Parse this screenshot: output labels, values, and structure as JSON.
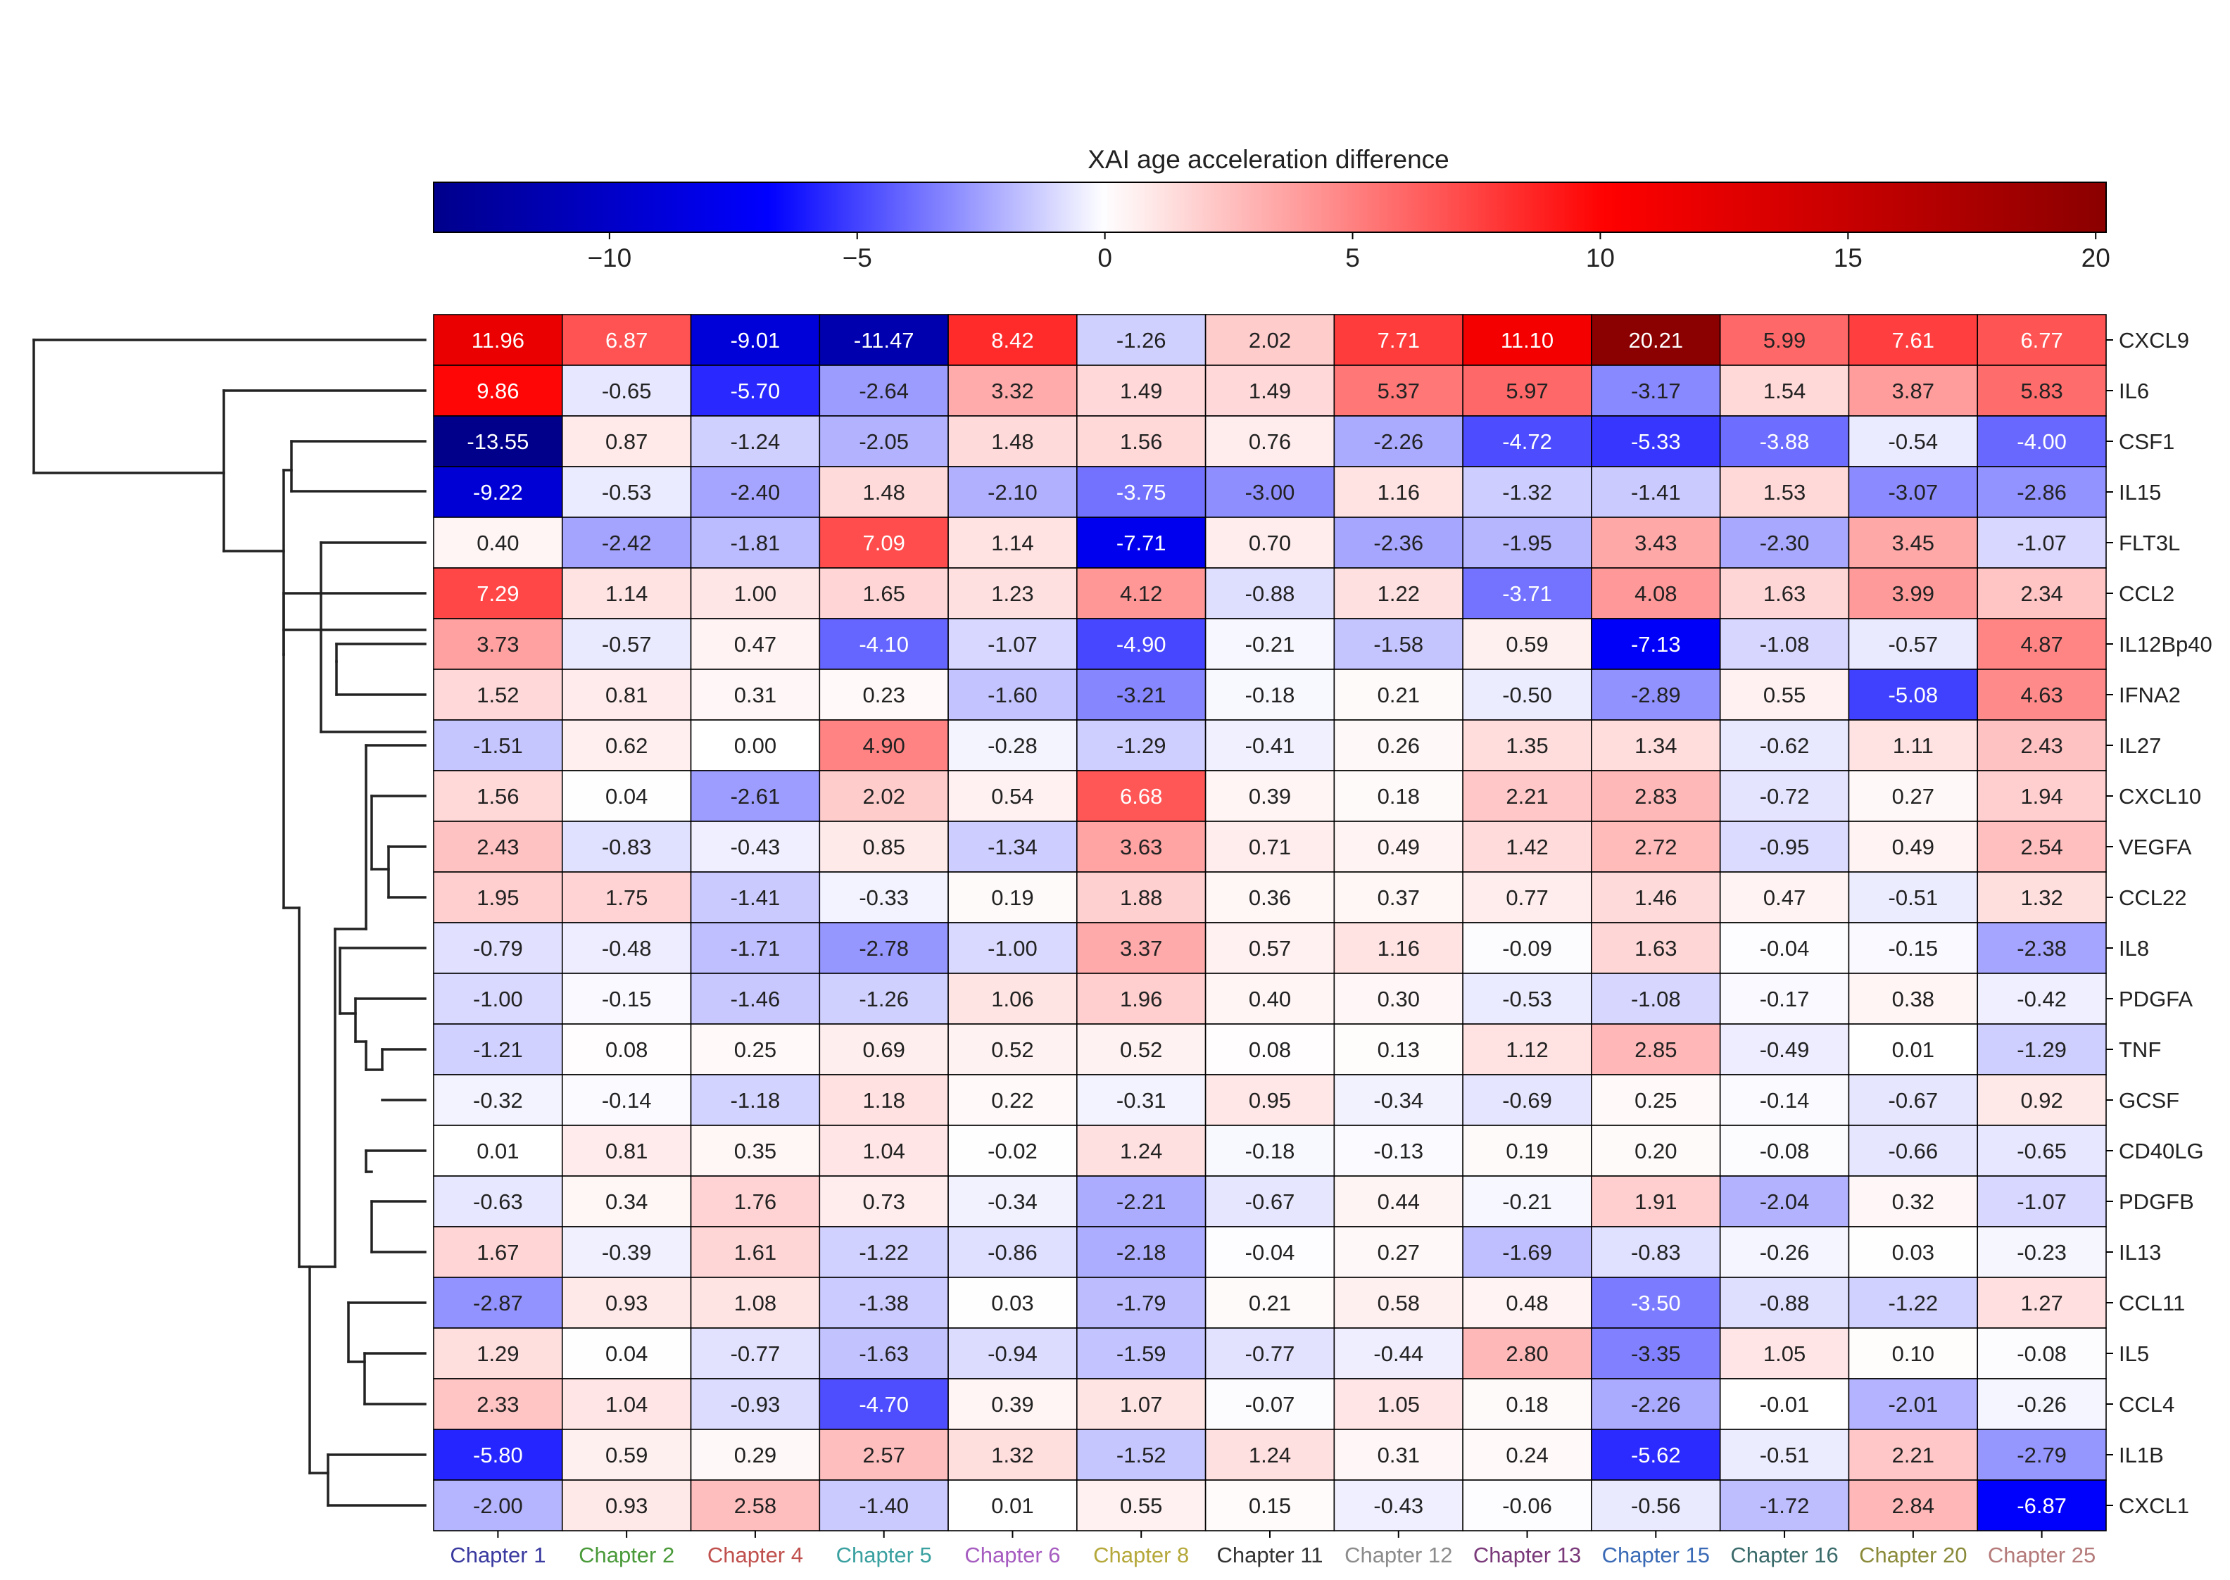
{
  "chart_data": {
    "type": "heatmap",
    "title": "",
    "colorbar": {
      "label": "XAI age acceleration difference",
      "range": [
        -13.55,
        20.21
      ],
      "center": 0,
      "ticks": [
        -10,
        -5,
        0,
        5,
        10,
        15,
        20
      ],
      "tick_labels": [
        "−10",
        "−5",
        "0",
        "5",
        "10",
        "15",
        "20"
      ],
      "colormap": [
        "#00008b",
        "#0000ff",
        "#ffffff",
        "#ff0000",
        "#8b0000"
      ],
      "placement": "top"
    },
    "columns": [
      {
        "label": "Chapter 1",
        "color": "#3a3aa0"
      },
      {
        "label": "Chapter 2",
        "color": "#4a9a3a"
      },
      {
        "label": "Chapter 4",
        "color": "#c0504d"
      },
      {
        "label": "Chapter 5",
        "color": "#3aa0a0"
      },
      {
        "label": "Chapter 6",
        "color": "#a65cc0"
      },
      {
        "label": "Chapter 8",
        "color": "#b5a83a"
      },
      {
        "label": "Chapter 11",
        "color": "#333333"
      },
      {
        "label": "Chapter 12",
        "color": "#8c8c8c"
      },
      {
        "label": "Chapter 13",
        "color": "#7a3a7a"
      },
      {
        "label": "Chapter 15",
        "color": "#3a6ab5"
      },
      {
        "label": "Chapter 16",
        "color": "#3a6a6a"
      },
      {
        "label": "Chapter 20",
        "color": "#8a8a3a"
      },
      {
        "label": "Chapter 25",
        "color": "#b57a7a"
      }
    ],
    "rows": [
      "CXCL9",
      "IL6",
      "CSF1",
      "IL15",
      "FLT3L",
      "CCL2",
      "IL12Bp40",
      "IFNA2",
      "IL27",
      "CXCL10",
      "VEGFA",
      "CCL22",
      "IL8",
      "PDGFA",
      "TNF",
      "GCSF",
      "CD40LG",
      "PDGFB",
      "IL13",
      "CCL11",
      "IL5",
      "CCL4",
      "IL1B",
      "CXCL1"
    ],
    "values": [
      [
        11.96,
        6.87,
        -9.01,
        -11.47,
        8.42,
        -1.26,
        2.02,
        7.71,
        11.1,
        20.21,
        5.99,
        7.61,
        6.77
      ],
      [
        9.86,
        -0.65,
        -5.7,
        -2.64,
        3.32,
        1.49,
        1.49,
        5.37,
        5.97,
        -3.17,
        1.54,
        3.87,
        5.83
      ],
      [
        -13.55,
        0.87,
        -1.24,
        -2.05,
        1.48,
        1.56,
        0.76,
        -2.26,
        -4.72,
        -5.33,
        -3.88,
        -0.54,
        -4.0
      ],
      [
        -9.22,
        -0.53,
        -2.4,
        1.48,
        -2.1,
        -3.75,
        -3.0,
        1.16,
        -1.32,
        -1.41,
        1.53,
        -3.07,
        -2.86
      ],
      [
        0.4,
        -2.42,
        -1.81,
        7.09,
        1.14,
        -7.71,
        0.7,
        -2.36,
        -1.95,
        3.43,
        -2.3,
        3.45,
        -1.07
      ],
      [
        7.29,
        1.14,
        1.0,
        1.65,
        1.23,
        4.12,
        -0.88,
        1.22,
        -3.71,
        4.08,
        1.63,
        3.99,
        2.34
      ],
      [
        3.73,
        -0.57,
        0.47,
        -4.1,
        -1.07,
        -4.9,
        -0.21,
        -1.58,
        0.59,
        -7.13,
        -1.08,
        -0.57,
        4.87
      ],
      [
        1.52,
        0.81,
        0.31,
        0.23,
        -1.6,
        -3.21,
        -0.18,
        0.21,
        -0.5,
        -2.89,
        0.55,
        -5.08,
        4.63
      ],
      [
        -1.51,
        0.62,
        0.0,
        4.9,
        -0.28,
        -1.29,
        -0.41,
        0.26,
        1.35,
        1.34,
        -0.62,
        1.11,
        2.43
      ],
      [
        1.56,
        0.04,
        -2.61,
        2.02,
        0.54,
        6.68,
        0.39,
        0.18,
        2.21,
        2.83,
        -0.72,
        0.27,
        1.94
      ],
      [
        2.43,
        -0.83,
        -0.43,
        0.85,
        -1.34,
        3.63,
        0.71,
        0.49,
        1.42,
        2.72,
        -0.95,
        0.49,
        2.54
      ],
      [
        1.95,
        1.75,
        -1.41,
        -0.33,
        0.19,
        1.88,
        0.36,
        0.37,
        0.77,
        1.46,
        0.47,
        -0.51,
        1.32
      ],
      [
        -0.79,
        -0.48,
        -1.71,
        -2.78,
        -1.0,
        3.37,
        0.57,
        1.16,
        -0.09,
        1.63,
        -0.04,
        -0.15,
        -2.38
      ],
      [
        -1.0,
        -0.15,
        -1.46,
        -1.26,
        1.06,
        1.96,
        0.4,
        0.3,
        -0.53,
        -1.08,
        -0.17,
        0.38,
        -0.42
      ],
      [
        -1.21,
        0.08,
        0.25,
        0.69,
        0.52,
        0.52,
        0.08,
        0.13,
        1.12,
        2.85,
        -0.49,
        0.01,
        -1.29
      ],
      [
        -0.32,
        -0.14,
        -1.18,
        1.18,
        0.22,
        -0.31,
        0.95,
        -0.34,
        -0.69,
        0.25,
        -0.14,
        -0.67,
        0.92
      ],
      [
        0.01,
        0.81,
        0.35,
        1.04,
        -0.02,
        1.24,
        -0.18,
        -0.13,
        0.19,
        0.2,
        -0.08,
        -0.66,
        -0.65
      ],
      [
        -0.63,
        0.34,
        1.76,
        0.73,
        -0.34,
        -2.21,
        -0.67,
        0.44,
        -0.21,
        1.91,
        -2.04,
        0.32,
        -1.07
      ],
      [
        1.67,
        -0.39,
        1.61,
        -1.22,
        -0.86,
        -2.18,
        -0.04,
        0.27,
        -1.69,
        -0.83,
        -0.26,
        0.03,
        -0.23
      ],
      [
        -2.87,
        0.93,
        1.08,
        -1.38,
        0.03,
        -1.79,
        0.21,
        0.58,
        0.48,
        -3.5,
        -0.88,
        -1.22,
        1.27
      ],
      [
        1.29,
        0.04,
        -0.77,
        -1.63,
        -0.94,
        -1.59,
        -0.77,
        -0.44,
        2.8,
        -3.35,
        1.05,
        0.1,
        -0.08
      ],
      [
        2.33,
        1.04,
        -0.93,
        -4.7,
        0.39,
        1.07,
        -0.07,
        1.05,
        0.18,
        -2.26,
        -0.01,
        -2.01,
        -0.26
      ],
      [
        -5.8,
        0.59,
        0.29,
        2.57,
        1.32,
        -1.52,
        1.24,
        0.31,
        0.24,
        -5.62,
        -0.51,
        2.21,
        -2.79
      ],
      [
        -2.0,
        0.93,
        2.58,
        -1.4,
        0.01,
        0.55,
        0.15,
        -0.43,
        -0.06,
        -0.56,
        -1.72,
        2.84,
        -6.87
      ]
    ],
    "row_dendrogram": {
      "linkage_order": "hierarchical clustering of rows",
      "merges": [
        {
          "left": "CXCL9",
          "right": "REST",
          "level": 6
        },
        {
          "left": "IL6",
          "right": "REST2",
          "level": 5
        }
      ]
    }
  }
}
